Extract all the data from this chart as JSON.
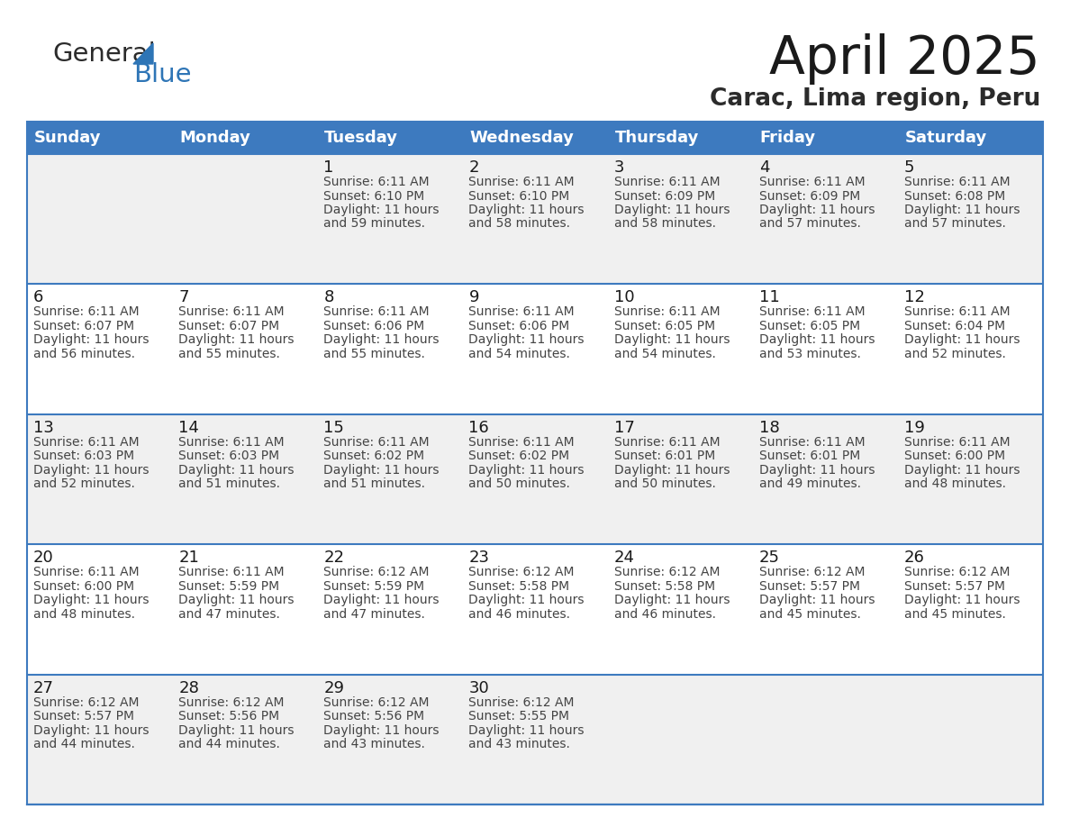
{
  "title": "April 2025",
  "subtitle": "Carac, Lima region, Peru",
  "header_bg": "#3D7ABF",
  "header_text_color": "#FFFFFF",
  "row_bg_odd": "#F0F0F0",
  "row_bg_even": "#FFFFFF",
  "row_divider_color": "#3D7ABF",
  "text_color": "#333333",
  "info_text_color": "#444444",
  "days_of_week": [
    "Sunday",
    "Monday",
    "Tuesday",
    "Wednesday",
    "Thursday",
    "Friday",
    "Saturday"
  ],
  "calendar_data": [
    [
      {
        "day": "",
        "info": ""
      },
      {
        "day": "",
        "info": ""
      },
      {
        "day": "1",
        "info": "Sunrise: 6:11 AM\nSunset: 6:10 PM\nDaylight: 11 hours\nand 59 minutes."
      },
      {
        "day": "2",
        "info": "Sunrise: 6:11 AM\nSunset: 6:10 PM\nDaylight: 11 hours\nand 58 minutes."
      },
      {
        "day": "3",
        "info": "Sunrise: 6:11 AM\nSunset: 6:09 PM\nDaylight: 11 hours\nand 58 minutes."
      },
      {
        "day": "4",
        "info": "Sunrise: 6:11 AM\nSunset: 6:09 PM\nDaylight: 11 hours\nand 57 minutes."
      },
      {
        "day": "5",
        "info": "Sunrise: 6:11 AM\nSunset: 6:08 PM\nDaylight: 11 hours\nand 57 minutes."
      }
    ],
    [
      {
        "day": "6",
        "info": "Sunrise: 6:11 AM\nSunset: 6:07 PM\nDaylight: 11 hours\nand 56 minutes."
      },
      {
        "day": "7",
        "info": "Sunrise: 6:11 AM\nSunset: 6:07 PM\nDaylight: 11 hours\nand 55 minutes."
      },
      {
        "day": "8",
        "info": "Sunrise: 6:11 AM\nSunset: 6:06 PM\nDaylight: 11 hours\nand 55 minutes."
      },
      {
        "day": "9",
        "info": "Sunrise: 6:11 AM\nSunset: 6:06 PM\nDaylight: 11 hours\nand 54 minutes."
      },
      {
        "day": "10",
        "info": "Sunrise: 6:11 AM\nSunset: 6:05 PM\nDaylight: 11 hours\nand 54 minutes."
      },
      {
        "day": "11",
        "info": "Sunrise: 6:11 AM\nSunset: 6:05 PM\nDaylight: 11 hours\nand 53 minutes."
      },
      {
        "day": "12",
        "info": "Sunrise: 6:11 AM\nSunset: 6:04 PM\nDaylight: 11 hours\nand 52 minutes."
      }
    ],
    [
      {
        "day": "13",
        "info": "Sunrise: 6:11 AM\nSunset: 6:03 PM\nDaylight: 11 hours\nand 52 minutes."
      },
      {
        "day": "14",
        "info": "Sunrise: 6:11 AM\nSunset: 6:03 PM\nDaylight: 11 hours\nand 51 minutes."
      },
      {
        "day": "15",
        "info": "Sunrise: 6:11 AM\nSunset: 6:02 PM\nDaylight: 11 hours\nand 51 minutes."
      },
      {
        "day": "16",
        "info": "Sunrise: 6:11 AM\nSunset: 6:02 PM\nDaylight: 11 hours\nand 50 minutes."
      },
      {
        "day": "17",
        "info": "Sunrise: 6:11 AM\nSunset: 6:01 PM\nDaylight: 11 hours\nand 50 minutes."
      },
      {
        "day": "18",
        "info": "Sunrise: 6:11 AM\nSunset: 6:01 PM\nDaylight: 11 hours\nand 49 minutes."
      },
      {
        "day": "19",
        "info": "Sunrise: 6:11 AM\nSunset: 6:00 PM\nDaylight: 11 hours\nand 48 minutes."
      }
    ],
    [
      {
        "day": "20",
        "info": "Sunrise: 6:11 AM\nSunset: 6:00 PM\nDaylight: 11 hours\nand 48 minutes."
      },
      {
        "day": "21",
        "info": "Sunrise: 6:11 AM\nSunset: 5:59 PM\nDaylight: 11 hours\nand 47 minutes."
      },
      {
        "day": "22",
        "info": "Sunrise: 6:12 AM\nSunset: 5:59 PM\nDaylight: 11 hours\nand 47 minutes."
      },
      {
        "day": "23",
        "info": "Sunrise: 6:12 AM\nSunset: 5:58 PM\nDaylight: 11 hours\nand 46 minutes."
      },
      {
        "day": "24",
        "info": "Sunrise: 6:12 AM\nSunset: 5:58 PM\nDaylight: 11 hours\nand 46 minutes."
      },
      {
        "day": "25",
        "info": "Sunrise: 6:12 AM\nSunset: 5:57 PM\nDaylight: 11 hours\nand 45 minutes."
      },
      {
        "day": "26",
        "info": "Sunrise: 6:12 AM\nSunset: 5:57 PM\nDaylight: 11 hours\nand 45 minutes."
      }
    ],
    [
      {
        "day": "27",
        "info": "Sunrise: 6:12 AM\nSunset: 5:57 PM\nDaylight: 11 hours\nand 44 minutes."
      },
      {
        "day": "28",
        "info": "Sunrise: 6:12 AM\nSunset: 5:56 PM\nDaylight: 11 hours\nand 44 minutes."
      },
      {
        "day": "29",
        "info": "Sunrise: 6:12 AM\nSunset: 5:56 PM\nDaylight: 11 hours\nand 43 minutes."
      },
      {
        "day": "30",
        "info": "Sunrise: 6:12 AM\nSunset: 5:55 PM\nDaylight: 11 hours\nand 43 minutes."
      },
      {
        "day": "",
        "info": ""
      },
      {
        "day": "",
        "info": ""
      },
      {
        "day": "",
        "info": ""
      }
    ]
  ],
  "logo_color_general": "#2B2B2B",
  "logo_color_blue": "#2E75B6",
  "title_fontsize": 42,
  "subtitle_fontsize": 19,
  "header_fontsize": 13,
  "day_num_fontsize": 13,
  "info_fontsize": 10
}
